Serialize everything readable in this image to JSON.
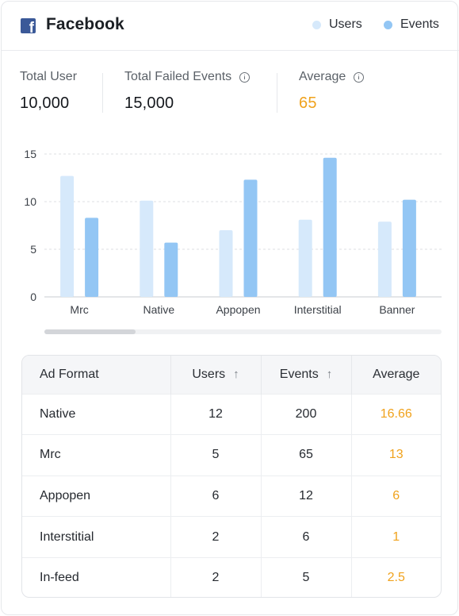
{
  "header": {
    "title": "Facebook",
    "legend": [
      {
        "label": "Users",
        "color": "#d6e9fb"
      },
      {
        "label": "Events",
        "color": "#93c6f4"
      }
    ]
  },
  "stats": {
    "total_user": {
      "label": "Total User",
      "value": "10,000"
    },
    "total_failed_events": {
      "label": "Total Failed Events",
      "value": "15,000"
    },
    "average": {
      "label": "Average",
      "value": "65",
      "color": "#f0a21c"
    }
  },
  "chart_data": {
    "type": "bar",
    "categories": [
      "Mrc",
      "Native",
      "Appopen",
      "Interstitial",
      "Banner"
    ],
    "series": [
      {
        "name": "Users",
        "values": [
          12.7,
          10.1,
          7.0,
          8.1,
          7.9
        ],
        "color": "#d6e9fb"
      },
      {
        "name": "Events",
        "values": [
          8.3,
          5.7,
          12.3,
          14.6,
          10.2
        ],
        "color": "#93c6f4"
      }
    ],
    "yticks": [
      "0",
      "5",
      "10",
      "15"
    ],
    "ylim": [
      0,
      15
    ],
    "grid": true
  },
  "scrollbar": {
    "position": 0
  },
  "table": {
    "columns": [
      "Ad Format",
      "Users",
      "Events",
      "Average"
    ],
    "sort_icon": "arrow-up-icon",
    "rows": [
      [
        "Native",
        "12",
        "200",
        "16.66"
      ],
      [
        "Mrc",
        "5",
        "65",
        "13"
      ],
      [
        "Appopen",
        "6",
        "12",
        "6"
      ],
      [
        "Interstitial",
        "2",
        "6",
        "1"
      ],
      [
        "In-feed",
        "2",
        "5",
        "2.5"
      ]
    ]
  }
}
